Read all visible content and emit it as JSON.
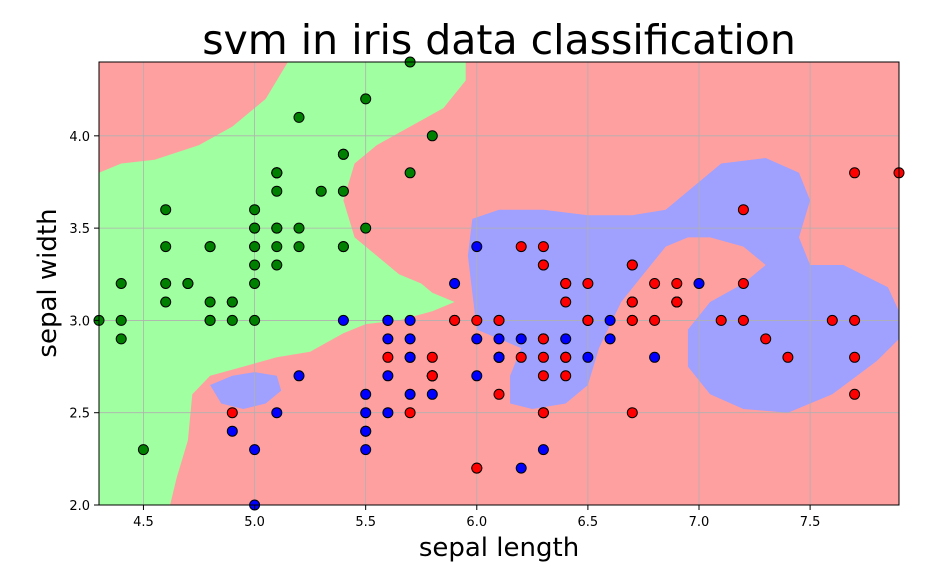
{
  "chart_data": {
    "type": "scatter",
    "title": "svm in iris data classification",
    "xlabel": "sepal length",
    "ylabel": "sepal width",
    "xlim": [
      4.3,
      7.9
    ],
    "ylim": [
      2.0,
      4.4
    ],
    "xticks": [
      "4.5",
      "5.0",
      "5.5",
      "6.0",
      "6.5",
      "7.0",
      "7.5"
    ],
    "yticks": [
      "2.0",
      "2.5",
      "3.0",
      "3.5",
      "4.0"
    ],
    "grid": true,
    "colors": {
      "region_default": "#ffa0a0",
      "region_green": "#a0ffa0",
      "region_blue": "#a0a0ff",
      "point_green": "#008000",
      "point_blue": "#0000ff",
      "point_red": "#ff0000",
      "point_edge": "#000000"
    },
    "regions": {
      "green": [
        [
          4.3,
          3.05
        ],
        [
          4.5,
          2.7
        ],
        [
          4.65,
          2.3
        ],
        [
          4.7,
          2.0
        ],
        [
          4.3,
          2.0
        ]
      ],
      "green_main": [
        [
          4.3,
          3.8
        ],
        [
          4.4,
          3.85
        ],
        [
          4.55,
          3.87
        ],
        [
          4.75,
          3.95
        ],
        [
          4.9,
          4.05
        ],
        [
          5.05,
          4.2
        ],
        [
          5.15,
          4.4
        ],
        [
          5.95,
          4.4
        ],
        [
          5.95,
          4.3
        ],
        [
          5.85,
          4.15
        ],
        [
          5.7,
          4.05
        ],
        [
          5.55,
          3.95
        ],
        [
          5.45,
          3.85
        ],
        [
          5.4,
          3.65
        ],
        [
          5.45,
          3.45
        ],
        [
          5.55,
          3.35
        ],
        [
          5.65,
          3.25
        ],
        [
          5.75,
          3.2
        ],
        [
          5.8,
          3.15
        ],
        [
          5.9,
          3.1
        ],
        [
          5.8,
          3.05
        ],
        [
          5.65,
          3.0
        ],
        [
          5.5,
          2.98
        ],
        [
          5.4,
          2.93
        ],
        [
          5.25,
          2.83
        ],
        [
          5.1,
          2.8
        ],
        [
          4.95,
          2.75
        ],
        [
          4.8,
          2.7
        ],
        [
          4.72,
          2.6
        ],
        [
          4.7,
          2.35
        ],
        [
          4.65,
          2.15
        ],
        [
          4.62,
          2.0
        ],
        [
          4.3,
          2.0
        ]
      ],
      "blue_big": [
        [
          5.98,
          3.55
        ],
        [
          6.1,
          3.6
        ],
        [
          6.3,
          3.6
        ],
        [
          6.5,
          3.57
        ],
        [
          6.7,
          3.57
        ],
        [
          6.85,
          3.6
        ],
        [
          6.95,
          3.7
        ],
        [
          7.1,
          3.85
        ],
        [
          7.3,
          3.88
        ],
        [
          7.45,
          3.8
        ],
        [
          7.5,
          3.65
        ],
        [
          7.45,
          3.45
        ],
        [
          7.5,
          3.3
        ],
        [
          7.65,
          3.3
        ],
        [
          7.85,
          3.18
        ],
        [
          7.9,
          3.05
        ],
        [
          7.9,
          2.9
        ],
        [
          7.8,
          2.78
        ],
        [
          7.6,
          2.6
        ],
        [
          7.4,
          2.5
        ],
        [
          7.2,
          2.52
        ],
        [
          7.05,
          2.6
        ],
        [
          6.95,
          2.75
        ],
        [
          6.95,
          2.95
        ],
        [
          7.05,
          3.1
        ],
        [
          7.2,
          3.2
        ],
        [
          7.3,
          3.3
        ],
        [
          7.2,
          3.4
        ],
        [
          7.05,
          3.45
        ],
        [
          6.95,
          3.45
        ],
        [
          6.85,
          3.4
        ],
        [
          6.75,
          3.25
        ],
        [
          6.65,
          3.1
        ],
        [
          6.55,
          2.85
        ],
        [
          6.5,
          2.65
        ],
        [
          6.4,
          2.55
        ],
        [
          6.25,
          2.52
        ],
        [
          6.15,
          2.55
        ],
        [
          6.15,
          2.7
        ],
        [
          6.2,
          2.85
        ],
        [
          6.1,
          2.9
        ],
        [
          6.0,
          2.95
        ],
        [
          5.98,
          3.15
        ],
        [
          5.96,
          3.35
        ]
      ],
      "blue_small": [
        [
          4.8,
          2.65
        ],
        [
          4.9,
          2.7
        ],
        [
          5.0,
          2.72
        ],
        [
          5.1,
          2.7
        ],
        [
          5.12,
          2.62
        ],
        [
          5.05,
          2.55
        ],
        [
          4.95,
          2.52
        ],
        [
          4.85,
          2.55
        ]
      ]
    },
    "series": [
      {
        "color": "#008000",
        "points": [
          [
            5.1,
            3.5
          ],
          [
            4.9,
            3.0
          ],
          [
            4.7,
            3.2
          ],
          [
            4.6,
            3.1
          ],
          [
            5.0,
            3.6
          ],
          [
            5.4,
            3.9
          ],
          [
            4.6,
            3.4
          ],
          [
            5.0,
            3.4
          ],
          [
            4.4,
            2.9
          ],
          [
            4.9,
            3.1
          ],
          [
            5.4,
            3.7
          ],
          [
            4.8,
            3.4
          ],
          [
            4.8,
            3.0
          ],
          [
            4.3,
            3.0
          ],
          [
            5.8,
            4.0
          ],
          [
            5.7,
            4.4
          ],
          [
            5.4,
            3.9
          ],
          [
            5.1,
            3.5
          ],
          [
            5.7,
            3.8
          ],
          [
            5.1,
            3.8
          ],
          [
            5.4,
            3.4
          ],
          [
            5.1,
            3.7
          ],
          [
            4.6,
            3.6
          ],
          [
            5.1,
            3.3
          ],
          [
            4.8,
            3.4
          ],
          [
            5.0,
            3.0
          ],
          [
            5.0,
            3.4
          ],
          [
            5.2,
            3.5
          ],
          [
            5.2,
            3.4
          ],
          [
            4.7,
            3.2
          ],
          [
            4.8,
            3.1
          ],
          [
            5.4,
            3.4
          ],
          [
            5.2,
            4.1
          ],
          [
            5.5,
            4.2
          ],
          [
            4.9,
            3.1
          ],
          [
            5.0,
            3.2
          ],
          [
            5.5,
            3.5
          ],
          [
            4.4,
            3.0
          ],
          [
            5.1,
            3.4
          ],
          [
            5.0,
            3.5
          ],
          [
            4.5,
            2.3
          ],
          [
            4.4,
            3.2
          ],
          [
            5.0,
            3.5
          ],
          [
            5.1,
            3.8
          ],
          [
            4.8,
            3.0
          ],
          [
            5.1,
            3.8
          ],
          [
            4.6,
            3.2
          ],
          [
            5.3,
            3.7
          ],
          [
            5.0,
            3.3
          ]
        ]
      },
      {
        "color": "#0000ff",
        "points": [
          [
            7.0,
            3.2
          ],
          [
            6.4,
            3.2
          ],
          [
            6.9,
            3.1
          ],
          [
            5.5,
            2.3
          ],
          [
            6.5,
            2.8
          ],
          [
            5.7,
            2.8
          ],
          [
            6.3,
            3.3
          ],
          [
            4.9,
            2.4
          ],
          [
            6.6,
            2.9
          ],
          [
            5.2,
            2.7
          ],
          [
            5.0,
            2.0
          ],
          [
            5.9,
            3.0
          ],
          [
            6.0,
            2.2
          ],
          [
            6.1,
            2.9
          ],
          [
            5.6,
            2.9
          ],
          [
            6.7,
            3.1
          ],
          [
            5.6,
            3.0
          ],
          [
            5.8,
            2.7
          ],
          [
            6.2,
            2.2
          ],
          [
            5.6,
            2.5
          ],
          [
            5.9,
            3.2
          ],
          [
            6.1,
            2.8
          ],
          [
            6.3,
            2.5
          ],
          [
            6.1,
            2.8
          ],
          [
            6.4,
            2.9
          ],
          [
            6.6,
            3.0
          ],
          [
            6.8,
            2.8
          ],
          [
            6.7,
            3.0
          ],
          [
            6.0,
            2.9
          ],
          [
            5.7,
            2.6
          ],
          [
            5.5,
            2.4
          ],
          [
            5.5,
            2.4
          ],
          [
            5.8,
            2.7
          ],
          [
            6.0,
            2.7
          ],
          [
            5.4,
            3.0
          ],
          [
            6.0,
            3.4
          ],
          [
            6.7,
            3.1
          ],
          [
            6.3,
            2.3
          ],
          [
            5.6,
            3.0
          ],
          [
            5.5,
            2.5
          ],
          [
            5.5,
            2.6
          ],
          [
            6.1,
            3.0
          ],
          [
            5.8,
            2.6
          ],
          [
            5.0,
            2.3
          ],
          [
            5.6,
            2.7
          ],
          [
            5.7,
            3.0
          ],
          [
            5.7,
            2.9
          ],
          [
            6.2,
            2.9
          ],
          [
            5.1,
            2.5
          ],
          [
            5.7,
            2.8
          ],
          [
            6.1,
            2.8
          ],
          [
            6.3,
            2.9
          ]
        ]
      },
      {
        "color": "#ff0000",
        "points": [
          [
            6.3,
            3.3
          ],
          [
            5.8,
            2.7
          ],
          [
            7.1,
            3.0
          ],
          [
            6.3,
            2.9
          ],
          [
            6.5,
            3.0
          ],
          [
            7.6,
            3.0
          ],
          [
            4.9,
            2.5
          ],
          [
            7.3,
            2.9
          ],
          [
            6.7,
            2.5
          ],
          [
            7.2,
            3.6
          ],
          [
            6.5,
            3.2
          ],
          [
            6.4,
            2.7
          ],
          [
            6.8,
            3.0
          ],
          [
            5.7,
            2.5
          ],
          [
            5.8,
            2.8
          ],
          [
            6.4,
            3.2
          ],
          [
            6.5,
            3.0
          ],
          [
            7.7,
            3.8
          ],
          [
            7.7,
            2.6
          ],
          [
            6.0,
            2.2
          ],
          [
            6.9,
            3.2
          ],
          [
            5.6,
            2.8
          ],
          [
            7.7,
            2.8
          ],
          [
            6.3,
            2.7
          ],
          [
            6.7,
            3.3
          ],
          [
            7.2,
            3.2
          ],
          [
            6.2,
            2.8
          ],
          [
            6.1,
            3.0
          ],
          [
            6.4,
            2.8
          ],
          [
            7.2,
            3.0
          ],
          [
            7.4,
            2.8
          ],
          [
            7.9,
            3.8
          ],
          [
            6.4,
            2.8
          ],
          [
            6.3,
            2.8
          ],
          [
            6.1,
            2.6
          ],
          [
            7.7,
            3.0
          ],
          [
            6.3,
            3.4
          ],
          [
            6.4,
            3.1
          ],
          [
            6.0,
            3.0
          ],
          [
            6.9,
            3.1
          ],
          [
            6.7,
            3.1
          ],
          [
            6.9,
            3.1
          ],
          [
            5.8,
            2.7
          ],
          [
            6.8,
            3.2
          ],
          [
            6.7,
            3.3
          ],
          [
            6.7,
            3.0
          ],
          [
            6.3,
            2.5
          ],
          [
            6.5,
            3.0
          ],
          [
            6.2,
            3.4
          ],
          [
            5.9,
            3.0
          ]
        ]
      }
    ]
  }
}
